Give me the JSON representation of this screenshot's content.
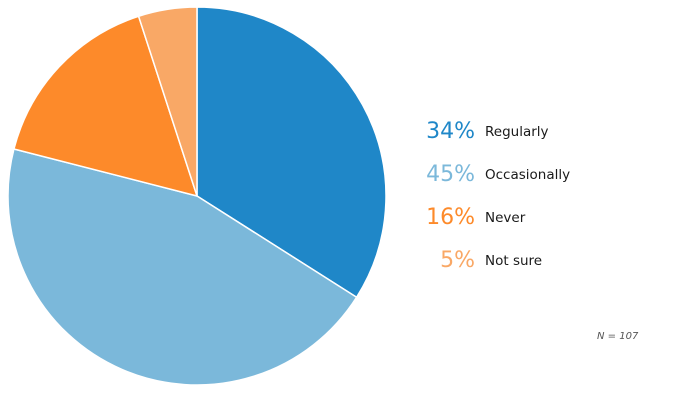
{
  "chart_data": {
    "type": "pie",
    "categories": [
      "Regularly",
      "Occasionally",
      "Never",
      "Not sure"
    ],
    "values": [
      34,
      45,
      16,
      5
    ],
    "value_labels": [
      "34%",
      "45%",
      "16%",
      "5%"
    ],
    "colors": [
      "#1f87c8",
      "#7bb8da",
      "#fd8a2a",
      "#f9a866"
    ],
    "start": "12 o'clock",
    "direction": "clockwise",
    "legend_position": "right"
  },
  "note": "N = 107"
}
